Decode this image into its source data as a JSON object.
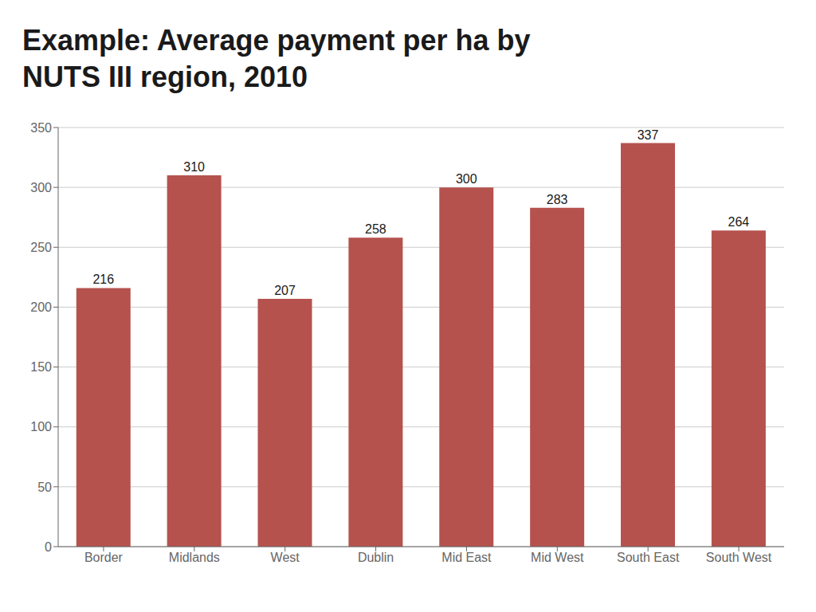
{
  "chart_data": {
    "type": "bar",
    "title": "Example: Average payment per ha by\nNUTS III region, 2010",
    "categories": [
      "Border",
      "Midlands",
      "West",
      "Dublin",
      "Mid East",
      "Mid West",
      "South East",
      "South West"
    ],
    "values": [
      216,
      310,
      207,
      258,
      300,
      283,
      337,
      264
    ],
    "color": "#B5524E",
    "ylim": [
      0,
      350
    ],
    "yticks": [
      0,
      50,
      100,
      150,
      200,
      250,
      300,
      350
    ],
    "grid": true,
    "data_labels": true
  }
}
